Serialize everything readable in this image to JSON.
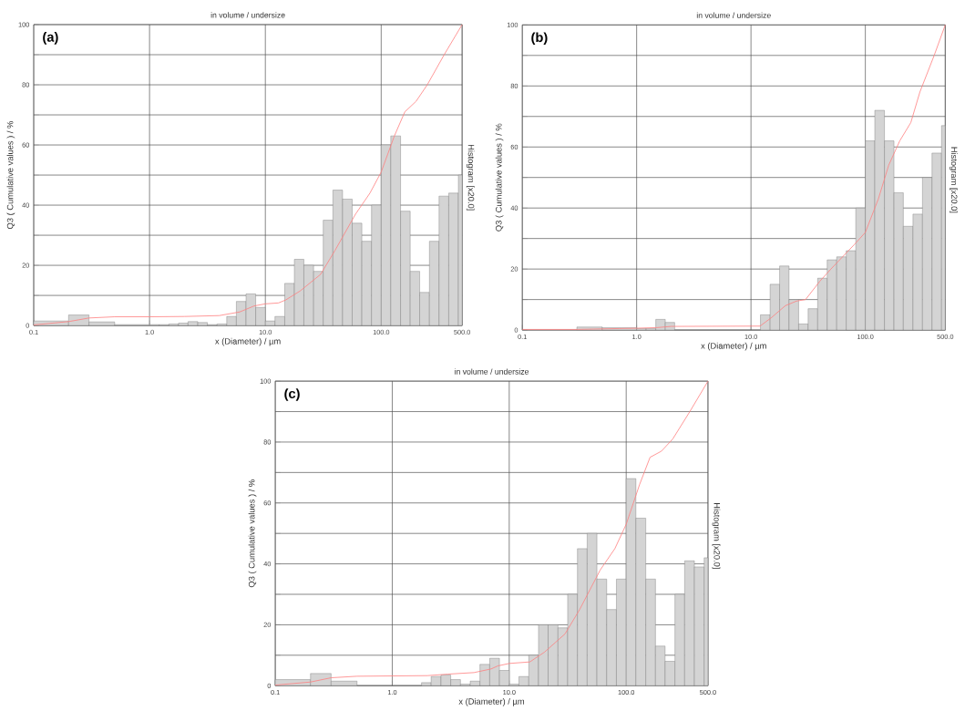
{
  "chart_data": [
    {
      "type": "histogram",
      "title": "in volume / undersize",
      "xlabel": "x (Diameter) / µm",
      "ylabel": "Q3 ( Cumulative values ) / %",
      "y2label": "Histogram [x20.0]",
      "annotations": [
        "(a)"
      ],
      "log": "x",
      "grid": true,
      "xlim": [
        0.1,
        500
      ],
      "xticks": [
        {
          "value": 0.1,
          "label": "0.1"
        },
        {
          "value": 1,
          "label": "1.0"
        },
        {
          "value": 10,
          "label": "10.0"
        },
        {
          "value": 100,
          "label": "100.0"
        },
        {
          "value": 500,
          "label": "500.0"
        }
      ],
      "ylim": [
        0,
        100
      ],
      "yticks": [
        0,
        {
          "value": 10,
          "label": null
        },
        20,
        {
          "value": 30,
          "label": null
        },
        40,
        {
          "value": 50,
          "label": null
        },
        60,
        {
          "value": 70,
          "label": null
        },
        80,
        {
          "value": 90,
          "label": null
        },
        100
      ],
      "series": [
        {
          "type": "histogram",
          "color": "#d4d4d4",
          "bins": [
            0.1,
            0.2,
            0.3,
            0.5,
            1.0,
            1.21,
            1.47,
            1.78,
            2.15,
            2.61,
            3.16,
            3.83,
            4.64,
            5.62,
            6.81,
            8.25,
            10,
            12.1,
            14.7,
            17.8,
            21.5,
            26.1,
            31.6,
            38.3,
            46.4,
            56.2,
            68.1,
            82.5,
            100,
            121,
            147,
            178,
            215,
            261,
            316,
            383,
            464,
            500
          ],
          "values": [
            1.5,
            3.5,
            1.2,
            0.3,
            0.3,
            0.3,
            0.5,
            0.8,
            1.3,
            1,
            0.3,
            0.5,
            3,
            8,
            10.5,
            6,
            1.5,
            3,
            14,
            22,
            20,
            18,
            35,
            45,
            42,
            34,
            28,
            40,
            60,
            63,
            38,
            18,
            11,
            28,
            43,
            44,
            50
          ]
        },
        {
          "type": "line",
          "color": "#ff7f7f",
          "x": [
            0.1,
            0.2,
            0.3,
            0.5,
            1,
            2,
            4,
            6,
            8,
            10,
            13,
            15,
            20,
            30,
            40,
            60,
            80,
            100,
            130,
            160,
            200,
            250,
            350,
            500
          ],
          "values": [
            0.2,
            1.3,
            2.5,
            2.9,
            2.9,
            3,
            3.3,
            4.5,
            6.5,
            7.2,
            7.5,
            8.5,
            11.5,
            17,
            25,
            37,
            44,
            51,
            63,
            71,
            74.5,
            80,
            90,
            100
          ]
        }
      ]
    },
    {
      "type": "histogram",
      "title": "in volume / undersize",
      "xlabel": "x (Diameter) / µm",
      "ylabel": "Q3 ( Cumulative values ) / %",
      "y2label": "Histogram [x20.0]",
      "annotations": [
        "(b)"
      ],
      "log": "x",
      "grid": true,
      "xlim": [
        0.1,
        500
      ],
      "xticks": [
        {
          "value": 0.1,
          "label": "0.1"
        },
        {
          "value": 1,
          "label": "1.0"
        },
        {
          "value": 10,
          "label": "10.0"
        },
        {
          "value": 100,
          "label": "100.0"
        },
        {
          "value": 500,
          "label": "500.0"
        }
      ],
      "ylim": [
        0,
        100
      ],
      "yticks": [
        0,
        {
          "value": 10,
          "label": null
        },
        20,
        {
          "value": 30,
          "label": null
        },
        40,
        {
          "value": 50,
          "label": null
        },
        60,
        {
          "value": 70,
          "label": null
        },
        80,
        {
          "value": 90,
          "label": null
        },
        100
      ],
      "series": [
        {
          "type": "histogram",
          "color": "#d4d4d4",
          "bins": [
            0.3,
            0.5,
            1.0,
            1.21,
            1.47,
            1.78,
            2.15,
            12.1,
            14.7,
            17.8,
            21.5,
            26.1,
            31.6,
            38.3,
            46.4,
            56.2,
            68.1,
            82.5,
            100,
            121,
            147,
            178,
            215,
            261,
            316,
            383,
            464,
            500
          ],
          "values": [
            1,
            0.8,
            0.5,
            0.5,
            3.5,
            2.5,
            0,
            5,
            15,
            21,
            10,
            2,
            7,
            17,
            23,
            24,
            26,
            40,
            62,
            72,
            62,
            45,
            34,
            38,
            50,
            58,
            67
          ]
        },
        {
          "type": "line",
          "color": "#ff7f7f",
          "x": [
            0.1,
            0.3,
            0.7,
            1,
            1.5,
            2,
            12,
            15,
            20,
            25,
            30,
            40,
            50,
            80,
            100,
            130,
            160,
            200,
            250,
            300,
            400,
            500
          ],
          "values": [
            0.2,
            0.2,
            0.5,
            0.6,
            0.8,
            1.2,
            1.3,
            4,
            8,
            9.5,
            10,
            16,
            20,
            28,
            32,
            43,
            54,
            62,
            68,
            78,
            90,
            100
          ]
        }
      ]
    },
    {
      "type": "histogram",
      "title": "in volume / undersize",
      "xlabel": "x (Diameter) / µm",
      "ylabel": "Q3 ( Cumulative values ) / %",
      "y2label": "Histogram [x20.0]",
      "annotations": [
        "(c)"
      ],
      "log": "x",
      "grid": true,
      "xlim": [
        0.1,
        500
      ],
      "xticks": [
        {
          "value": 0.1,
          "label": "0.1"
        },
        {
          "value": 1,
          "label": "1.0"
        },
        {
          "value": 10,
          "label": "10.0"
        },
        {
          "value": 100,
          "label": "100.0"
        },
        {
          "value": 500,
          "label": "500.0"
        }
      ],
      "ylim": [
        0,
        100
      ],
      "yticks": [
        0,
        {
          "value": 10,
          "label": null
        },
        20,
        {
          "value": 30,
          "label": null
        },
        40,
        {
          "value": 50,
          "label": null
        },
        60,
        {
          "value": 70,
          "label": null
        },
        80,
        {
          "value": 90,
          "label": null
        },
        100
      ],
      "series": [
        {
          "type": "histogram",
          "color": "#d4d4d4",
          "bins": [
            0.1,
            0.2,
            0.3,
            0.5,
            1.78,
            2.15,
            2.61,
            3.16,
            3.83,
            4.64,
            5.62,
            6.81,
            8.25,
            10,
            12.1,
            14.7,
            17.8,
            21.5,
            26.1,
            31.6,
            38.3,
            46.4,
            56.2,
            68.1,
            82.5,
            100,
            121,
            147,
            178,
            215,
            261,
            316,
            383,
            464,
            500
          ],
          "values": [
            2,
            4,
            1.5,
            0,
            1,
            3,
            3.5,
            2,
            0.5,
            1.5,
            7,
            9,
            5,
            0.5,
            3,
            10,
            20,
            20,
            19,
            30,
            45,
            50,
            35,
            25,
            35,
            68,
            55,
            35,
            13,
            8,
            30,
            41,
            39,
            42
          ]
        },
        {
          "type": "line",
          "color": "#ff7f7f",
          "x": [
            0.1,
            0.2,
            0.3,
            0.5,
            1,
            2,
            3,
            5,
            7,
            8,
            10,
            15,
            20,
            30,
            40,
            60,
            80,
            100,
            130,
            160,
            200,
            250,
            350,
            500
          ],
          "values": [
            0.2,
            1.2,
            2.6,
            3.1,
            3.2,
            3.3,
            3.8,
            4.3,
            5.5,
            6.5,
            7.3,
            7.8,
            11,
            17,
            25,
            38,
            45,
            53,
            66,
            75,
            77,
            81,
            90,
            100
          ]
        }
      ]
    }
  ]
}
